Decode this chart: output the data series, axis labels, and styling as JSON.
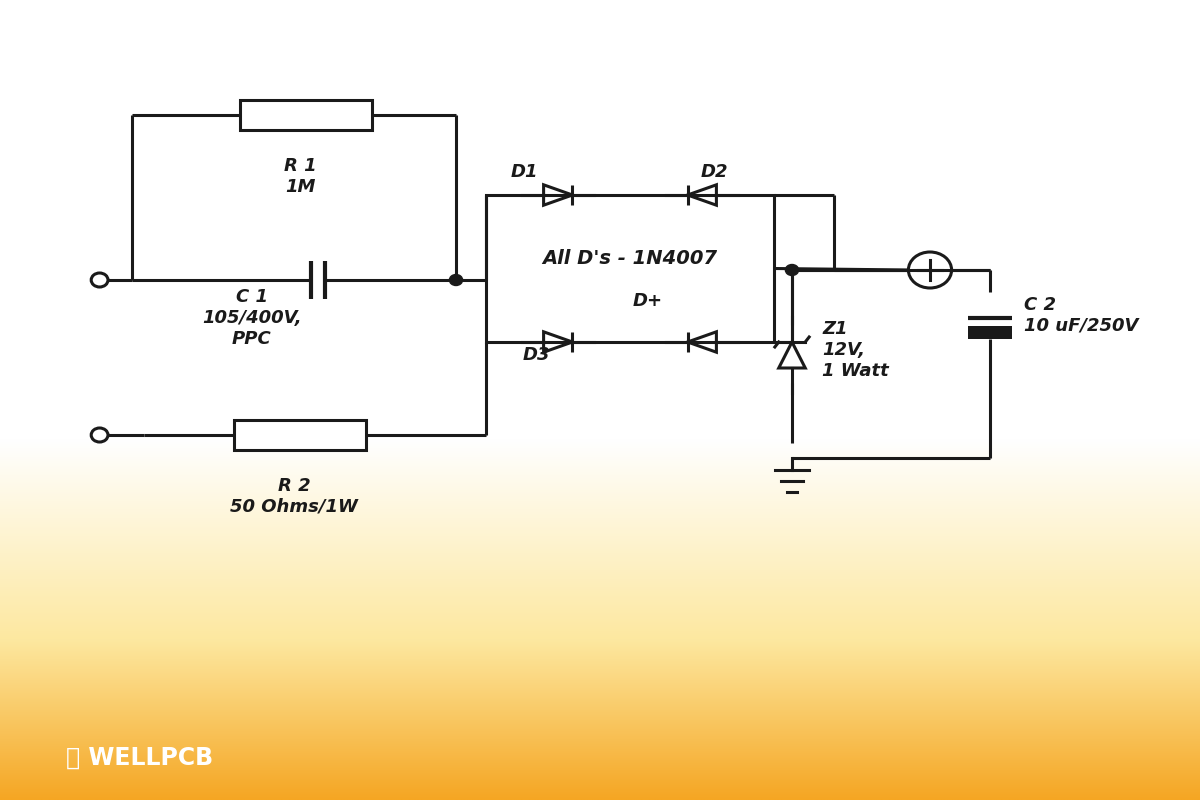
{
  "bg_colors": [
    "#ffffff",
    "#ffffff",
    "#fde8a0",
    "#f5a623"
  ],
  "bg_stops": [
    0.0,
    0.55,
    0.8,
    1.0
  ],
  "line_color": "#1a1a1a",
  "text_color": "#1a1a1a",
  "logo_color": "#ffffff",
  "logo_text": "WELLPCB",
  "R1_label": "R 1\n1M",
  "C1_label": "C 1\n105/400V,\nPPC",
  "R2_label": "R 2\n50 Ohms/1W",
  "bridge_label": "All D's - 1N4007",
  "bridge_label2": "D+",
  "D1_label": "D1",
  "D2_label": "D2",
  "D3_label": "D3",
  "Z1_label": "Z1\n12V,\n1 Watt",
  "C2_label": "C 2\n10 uF/250V"
}
